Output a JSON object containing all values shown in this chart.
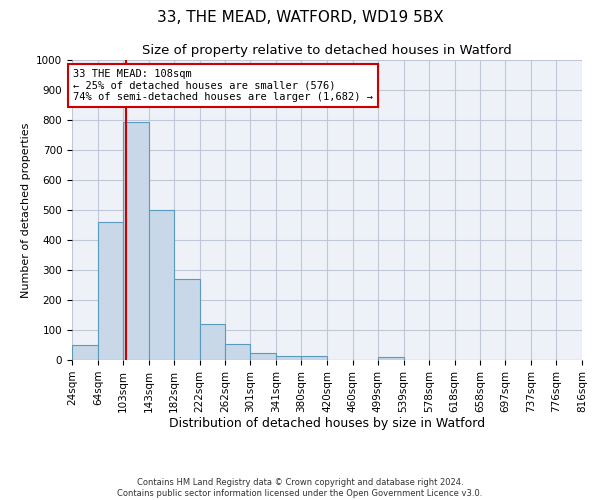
{
  "title1": "33, THE MEAD, WATFORD, WD19 5BX",
  "title2": "Size of property relative to detached houses in Watford",
  "xlabel": "Distribution of detached houses by size in Watford",
  "ylabel": "Number of detached properties",
  "bar_edges": [
    24,
    64,
    103,
    143,
    182,
    222,
    262,
    301,
    341,
    380,
    420,
    460,
    499,
    539,
    578,
    618,
    658,
    697,
    737,
    776,
    816
  ],
  "bar_heights": [
    50,
    460,
    795,
    500,
    270,
    120,
    55,
    25,
    15,
    15,
    0,
    0,
    10,
    0,
    0,
    0,
    0,
    0,
    0,
    0
  ],
  "bar_color": "#c8d8e8",
  "bar_edge_color": "#5a9abd",
  "grid_color": "#c0c8d8",
  "background_color": "#eef2f8",
  "vline_x": 108,
  "vline_color": "#cc0000",
  "annotation_text": "33 THE MEAD: 108sqm\n← 25% of detached houses are smaller (576)\n74% of semi-detached houses are larger (1,682) →",
  "annotation_box_color": "#cc0000",
  "ylim": [
    0,
    1000
  ],
  "yticks": [
    0,
    100,
    200,
    300,
    400,
    500,
    600,
    700,
    800,
    900,
    1000
  ],
  "footnote": "Contains HM Land Registry data © Crown copyright and database right 2024.\nContains public sector information licensed under the Open Government Licence v3.0.",
  "title1_fontsize": 11,
  "title2_fontsize": 9.5,
  "xlabel_fontsize": 9,
  "ylabel_fontsize": 8,
  "tick_fontsize": 7.5,
  "annotation_fontsize": 7.5
}
